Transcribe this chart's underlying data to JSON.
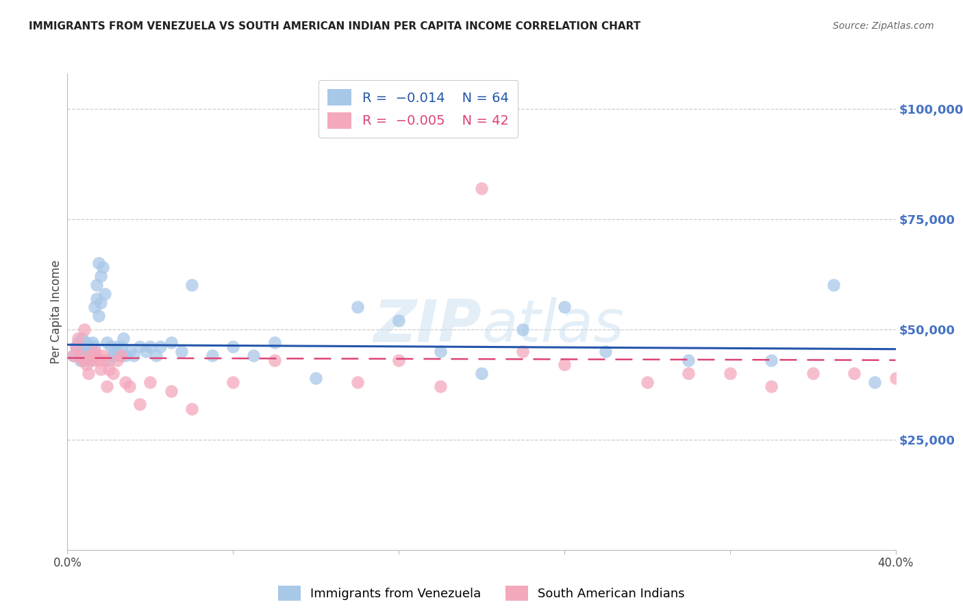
{
  "title": "IMMIGRANTS FROM VENEZUELA VS SOUTH AMERICAN INDIAN PER CAPITA INCOME CORRELATION CHART",
  "source": "Source: ZipAtlas.com",
  "ylabel": "Per Capita Income",
  "xlim": [
    0.0,
    0.4
  ],
  "ylim": [
    0,
    108000
  ],
  "yticks": [
    0,
    25000,
    50000,
    75000,
    100000
  ],
  "ytick_labels": [
    "",
    "$25,000",
    "$50,000",
    "$75,000",
    "$100,000"
  ],
  "xticks": [
    0.0,
    0.08,
    0.16,
    0.24,
    0.32,
    0.4
  ],
  "xtick_labels": [
    "0.0%",
    "",
    "",
    "",
    "",
    "40.0%"
  ],
  "blue_label": "Immigrants from Venezuela",
  "pink_label": "South American Indians",
  "blue_R_text": "R = -0.014",
  "blue_N_text": "N = 64",
  "pink_R_text": "R = -0.005",
  "pink_N_text": "N = 42",
  "blue_color": "#a8c8e8",
  "pink_color": "#f4a8bc",
  "blue_line_color": "#2255aa",
  "pink_line_color": "#dd4477",
  "background_color": "#ffffff",
  "grid_color": "#cccccc",
  "title_color": "#222222",
  "source_color": "#666666",
  "ylabel_color": "#444444",
  "ytick_color": "#4472c4",
  "xtick_color": "#444444",
  "blue_scatter_x": [
    0.003,
    0.004,
    0.005,
    0.006,
    0.006,
    0.007,
    0.007,
    0.008,
    0.008,
    0.008,
    0.009,
    0.009,
    0.01,
    0.01,
    0.011,
    0.011,
    0.012,
    0.012,
    0.013,
    0.013,
    0.014,
    0.014,
    0.015,
    0.015,
    0.016,
    0.016,
    0.017,
    0.018,
    0.019,
    0.02,
    0.021,
    0.022,
    0.023,
    0.024,
    0.025,
    0.026,
    0.027,
    0.028,
    0.03,
    0.032,
    0.035,
    0.038,
    0.04,
    0.043,
    0.045,
    0.05,
    0.055,
    0.06,
    0.07,
    0.08,
    0.09,
    0.1,
    0.12,
    0.14,
    0.16,
    0.18,
    0.2,
    0.22,
    0.24,
    0.26,
    0.3,
    0.34,
    0.37,
    0.39
  ],
  "blue_scatter_y": [
    44000,
    46000,
    47000,
    43000,
    46000,
    45000,
    48000,
    44000,
    45000,
    46000,
    43000,
    47000,
    44000,
    46000,
    45000,
    43000,
    44000,
    47000,
    46000,
    55000,
    60000,
    57000,
    65000,
    53000,
    62000,
    56000,
    64000,
    58000,
    47000,
    43000,
    46000,
    44000,
    45000,
    46000,
    44000,
    46000,
    48000,
    44000,
    45000,
    44000,
    46000,
    45000,
    46000,
    44000,
    46000,
    47000,
    45000,
    60000,
    44000,
    46000,
    44000,
    47000,
    39000,
    55000,
    52000,
    45000,
    40000,
    50000,
    55000,
    45000,
    43000,
    43000,
    60000,
    38000
  ],
  "pink_scatter_x": [
    0.003,
    0.004,
    0.005,
    0.006,
    0.007,
    0.008,
    0.009,
    0.01,
    0.011,
    0.012,
    0.013,
    0.014,
    0.015,
    0.016,
    0.017,
    0.018,
    0.019,
    0.02,
    0.022,
    0.024,
    0.026,
    0.028,
    0.03,
    0.035,
    0.04,
    0.05,
    0.06,
    0.08,
    0.1,
    0.14,
    0.16,
    0.2,
    0.24,
    0.28,
    0.3,
    0.32,
    0.34,
    0.36,
    0.38,
    0.4,
    0.22,
    0.18
  ],
  "pink_scatter_y": [
    44000,
    46000,
    48000,
    44000,
    43000,
    50000,
    42000,
    40000,
    44000,
    43000,
    45000,
    44000,
    43000,
    41000,
    44000,
    43000,
    37000,
    41000,
    40000,
    43000,
    44000,
    38000,
    37000,
    33000,
    38000,
    36000,
    32000,
    38000,
    43000,
    38000,
    43000,
    82000,
    42000,
    38000,
    40000,
    40000,
    37000,
    40000,
    40000,
    39000,
    45000,
    37000
  ]
}
